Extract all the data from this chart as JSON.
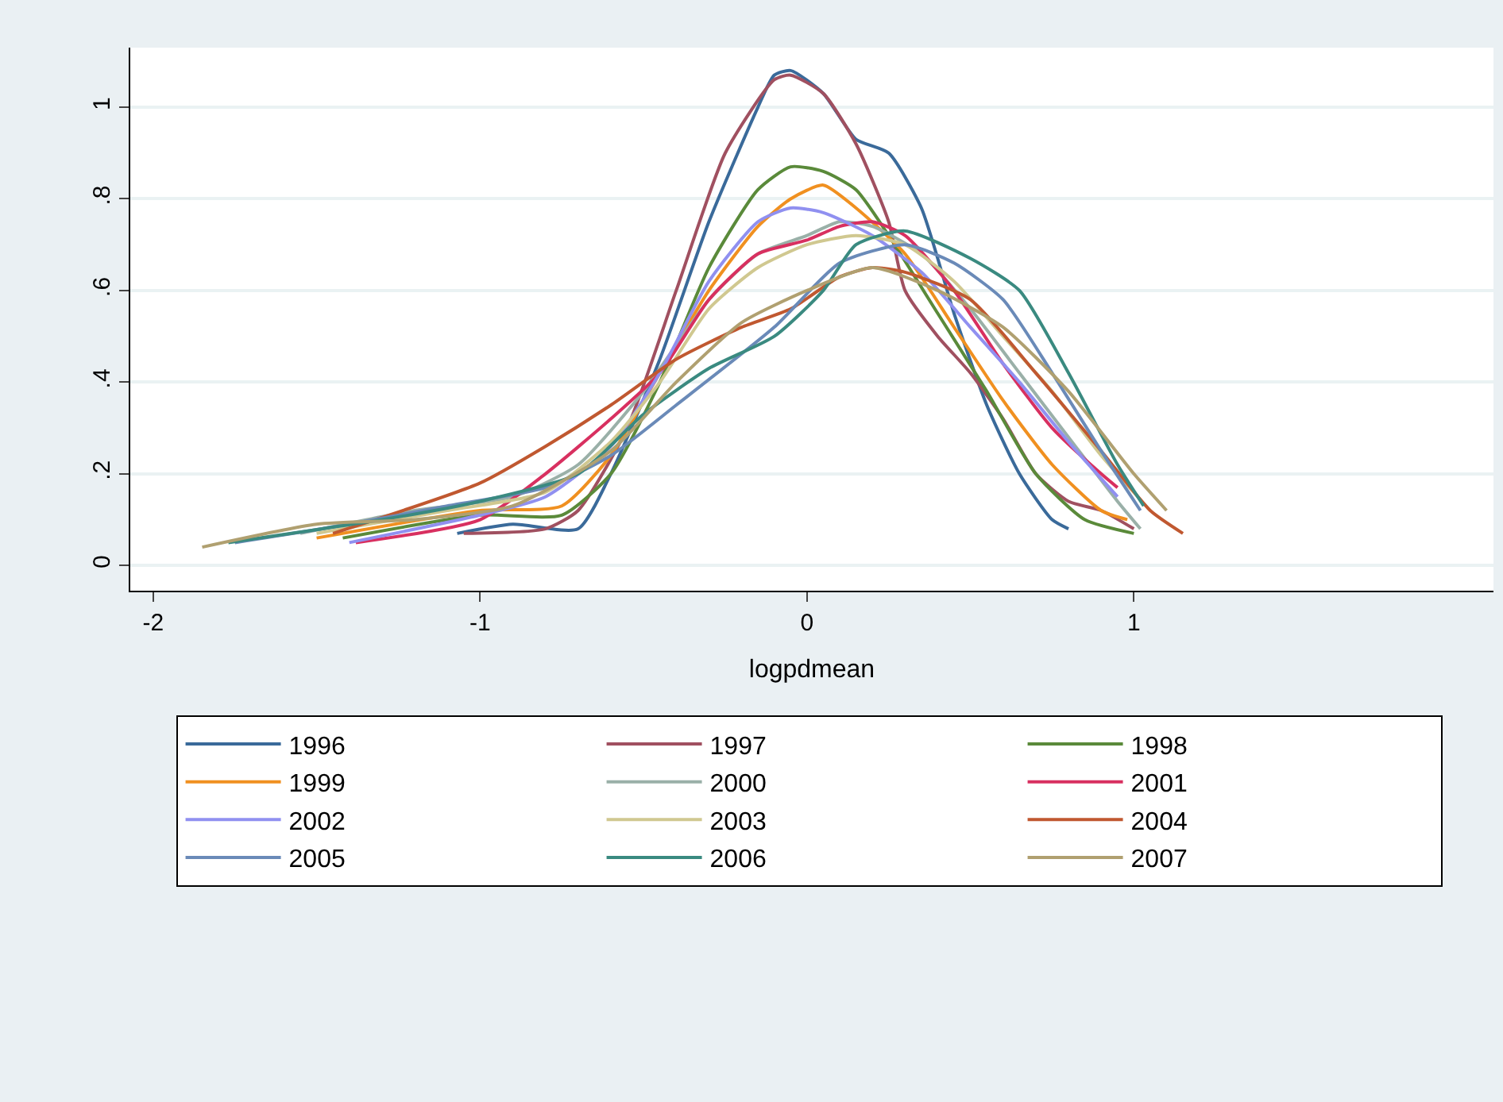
{
  "chart_data": {
    "type": "line",
    "xlabel": "logpdmean",
    "xlim": [
      -2.07,
      2.1
    ],
    "xticks": [
      -2,
      -1,
      0,
      1
    ],
    "ylim": [
      -0.055,
      1.13
    ],
    "yticks": [
      0,
      {
        "value": 0.2,
        "label": ".2"
      },
      {
        "value": 0.4,
        "label": ".4"
      },
      {
        "value": 0.6,
        "label": ".6"
      },
      {
        "value": 0.8,
        "label": ".8"
      },
      1
    ],
    "grid": "y",
    "legend": "bottom",
    "marker": "none",
    "line_style": "solid",
    "series": [
      {
        "name": "1996",
        "color": "#3a6a9a",
        "x": [
          -1.07,
          -0.9,
          -0.7,
          -0.6,
          -0.45,
          -0.3,
          -0.15,
          -0.1,
          -0.05,
          0.05,
          0.15,
          0.25,
          0.35,
          0.45,
          0.55,
          0.65,
          0.75,
          0.8
        ],
        "values": [
          0.07,
          0.09,
          0.08,
          0.2,
          0.45,
          0.75,
          1.0,
          1.07,
          1.08,
          1.03,
          0.93,
          0.9,
          0.78,
          0.55,
          0.35,
          0.2,
          0.1,
          0.08
        ]
      },
      {
        "name": "1997",
        "color": "#a05060",
        "x": [
          -1.05,
          -0.8,
          -0.7,
          -0.55,
          -0.4,
          -0.25,
          -0.1,
          -0.05,
          0.05,
          0.15,
          0.25,
          0.3,
          0.4,
          0.5,
          0.6,
          0.7,
          0.8,
          0.9,
          1.0
        ],
        "values": [
          0.07,
          0.08,
          0.12,
          0.3,
          0.6,
          0.9,
          1.06,
          1.07,
          1.03,
          0.92,
          0.75,
          0.6,
          0.5,
          0.42,
          0.32,
          0.2,
          0.14,
          0.12,
          0.08
        ]
      },
      {
        "name": "1998",
        "color": "#5a8a3a",
        "x": [
          -1.42,
          -1.0,
          -0.75,
          -0.6,
          -0.45,
          -0.3,
          -0.15,
          -0.05,
          0.05,
          0.15,
          0.25,
          0.4,
          0.55,
          0.7,
          0.85,
          1.0
        ],
        "values": [
          0.06,
          0.11,
          0.11,
          0.2,
          0.4,
          0.65,
          0.82,
          0.87,
          0.86,
          0.82,
          0.72,
          0.55,
          0.38,
          0.2,
          0.1,
          0.07
        ]
      },
      {
        "name": "1999",
        "color": "#f09020",
        "x": [
          -1.5,
          -1.0,
          -0.75,
          -0.6,
          -0.45,
          -0.3,
          -0.15,
          -0.05,
          0.05,
          0.15,
          0.3,
          0.45,
          0.6,
          0.75,
          0.9,
          0.98
        ],
        "values": [
          0.06,
          0.12,
          0.13,
          0.24,
          0.42,
          0.6,
          0.74,
          0.8,
          0.83,
          0.78,
          0.68,
          0.52,
          0.36,
          0.22,
          0.12,
          0.1
        ]
      },
      {
        "name": "2000",
        "color": "#9ab0a8",
        "x": [
          -1.55,
          -1.2,
          -0.9,
          -0.7,
          -0.5,
          -0.3,
          -0.15,
          0.0,
          0.1,
          0.2,
          0.35,
          0.5,
          0.65,
          0.8,
          0.95,
          1.02
        ],
        "values": [
          0.07,
          0.12,
          0.15,
          0.22,
          0.38,
          0.58,
          0.68,
          0.72,
          0.75,
          0.74,
          0.68,
          0.56,
          0.42,
          0.28,
          0.14,
          0.08
        ]
      },
      {
        "name": "2001",
        "color": "#d83060",
        "x": [
          -1.38,
          -1.0,
          -0.8,
          -0.6,
          -0.45,
          -0.3,
          -0.15,
          0.0,
          0.1,
          0.2,
          0.3,
          0.45,
          0.6,
          0.75,
          0.9,
          0.95
        ],
        "values": [
          0.05,
          0.1,
          0.2,
          0.32,
          0.42,
          0.58,
          0.68,
          0.71,
          0.74,
          0.75,
          0.72,
          0.6,
          0.44,
          0.3,
          0.2,
          0.17
        ]
      },
      {
        "name": "2002",
        "color": "#9090f0",
        "x": [
          -1.4,
          -1.0,
          -0.8,
          -0.6,
          -0.45,
          -0.3,
          -0.15,
          -0.05,
          0.05,
          0.2,
          0.35,
          0.5,
          0.65,
          0.8,
          0.95
        ],
        "values": [
          0.05,
          0.11,
          0.15,
          0.26,
          0.42,
          0.62,
          0.75,
          0.78,
          0.77,
          0.72,
          0.64,
          0.52,
          0.4,
          0.27,
          0.15
        ]
      },
      {
        "name": "2003",
        "color": "#d0c890",
        "x": [
          -1.5,
          -1.1,
          -0.8,
          -0.6,
          -0.45,
          -0.3,
          -0.15,
          0.0,
          0.15,
          0.3,
          0.45,
          0.6,
          0.75,
          0.9,
          1.05
        ],
        "values": [
          0.07,
          0.12,
          0.16,
          0.27,
          0.4,
          0.56,
          0.65,
          0.7,
          0.72,
          0.7,
          0.62,
          0.5,
          0.38,
          0.24,
          0.12
        ]
      },
      {
        "name": "2004",
        "color": "#c05830",
        "x": [
          -1.45,
          -1.0,
          -0.8,
          -0.6,
          -0.4,
          -0.2,
          -0.05,
          0.1,
          0.2,
          0.3,
          0.5,
          0.7,
          0.9,
          1.05,
          1.15
        ],
        "values": [
          0.07,
          0.18,
          0.26,
          0.35,
          0.45,
          0.52,
          0.56,
          0.63,
          0.65,
          0.64,
          0.58,
          0.42,
          0.25,
          0.12,
          0.07
        ]
      },
      {
        "name": "2005",
        "color": "#6a8ab8",
        "x": [
          -1.75,
          -1.4,
          -1.1,
          -0.8,
          -0.6,
          -0.4,
          -0.1,
          0.1,
          0.3,
          0.45,
          0.6,
          0.75,
          0.9,
          1.02
        ],
        "values": [
          0.05,
          0.09,
          0.13,
          0.17,
          0.24,
          0.35,
          0.52,
          0.66,
          0.7,
          0.66,
          0.58,
          0.42,
          0.25,
          0.12
        ]
      },
      {
        "name": "2006",
        "color": "#3a8a80",
        "x": [
          -1.77,
          -1.3,
          -1.0,
          -0.7,
          -0.5,
          -0.3,
          -0.1,
          0.05,
          0.15,
          0.3,
          0.5,
          0.65,
          0.8,
          0.95,
          1.03
        ],
        "values": [
          0.05,
          0.1,
          0.14,
          0.2,
          0.33,
          0.43,
          0.5,
          0.6,
          0.7,
          0.73,
          0.67,
          0.6,
          0.42,
          0.22,
          0.13
        ]
      },
      {
        "name": "2007",
        "color": "#b0a070",
        "x": [
          -1.85,
          -1.5,
          -1.2,
          -0.9,
          -0.6,
          -0.4,
          -0.2,
          0.0,
          0.2,
          0.4,
          0.6,
          0.8,
          1.0,
          1.1
        ],
        "values": [
          0.04,
          0.09,
          0.1,
          0.13,
          0.25,
          0.4,
          0.53,
          0.6,
          0.65,
          0.6,
          0.52,
          0.38,
          0.2,
          0.12
        ]
      }
    ]
  }
}
